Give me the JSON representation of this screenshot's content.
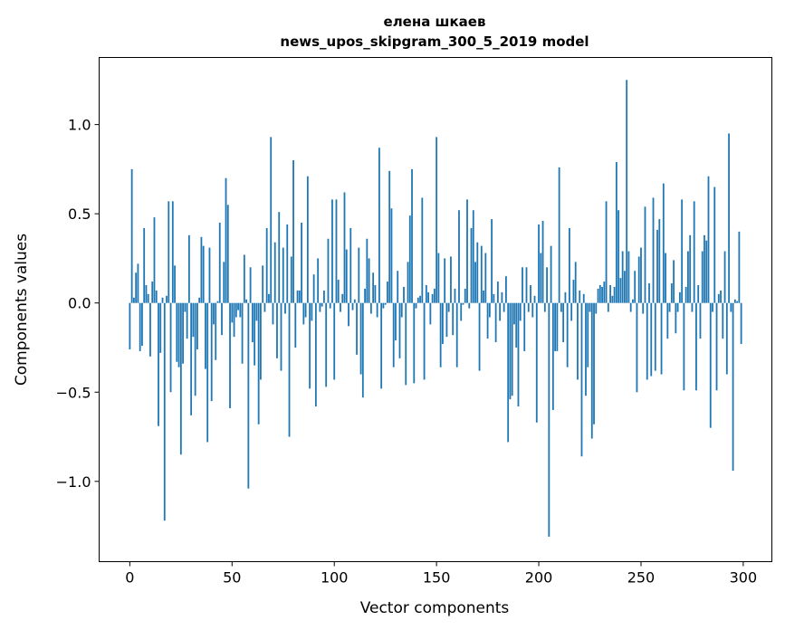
{
  "chart_data": {
    "type": "bar",
    "title": "елена шкаев",
    "subtitle": "news_upos_skipgram_300_5_2019 model",
    "xlabel": "Vector components",
    "ylabel": "Components values",
    "xlim": [
      -15,
      314
    ],
    "ylim": [
      -1.45,
      1.376
    ],
    "xticks": [
      0,
      50,
      100,
      150,
      200,
      250,
      300
    ],
    "xtick_labels": [
      "0",
      "50",
      "100",
      "150",
      "200",
      "250",
      "300"
    ],
    "yticks": [
      -1.0,
      -0.5,
      0.0,
      0.5,
      1.0
    ],
    "ytick_labels": [
      "−1.0",
      "−0.5",
      "0.0",
      "0.5",
      "1.0"
    ],
    "grid": false,
    "color": "#1f77b4",
    "values": [
      -0.26,
      0.75,
      0.03,
      0.17,
      0.22,
      -0.27,
      -0.24,
      0.42,
      0.1,
      0.05,
      -0.3,
      0.12,
      0.48,
      0.07,
      -0.69,
      -0.28,
      0.03,
      -1.22,
      0.04,
      0.57,
      -0.5,
      0.57,
      0.21,
      -0.33,
      -0.36,
      -0.85,
      -0.34,
      -0.05,
      -0.2,
      0.38,
      -0.63,
      -0.19,
      -0.52,
      -0.26,
      0.03,
      0.37,
      0.32,
      -0.37,
      -0.78,
      0.31,
      -0.55,
      -0.12,
      -0.32,
      0.01,
      0.45,
      -0.18,
      0.23,
      0.7,
      0.55,
      -0.59,
      -0.11,
      -0.19,
      -0.08,
      -0.04,
      -0.08,
      -0.34,
      0.27,
      0.02,
      -1.04,
      0.2,
      -0.22,
      -0.35,
      -0.1,
      -0.68,
      -0.43,
      0.21,
      -0.05,
      0.42,
      0.05,
      0.93,
      -0.12,
      0.34,
      -0.31,
      0.51,
      -0.38,
      0.31,
      -0.06,
      0.44,
      -0.75,
      0.26,
      0.8,
      -0.25,
      0.07,
      0.07,
      0.45,
      -0.12,
      -0.08,
      0.71,
      -0.48,
      -0.1,
      0.16,
      -0.58,
      0.25,
      -0.05,
      -0.02,
      0.07,
      -0.47,
      0.36,
      -0.03,
      0.58,
      -0.43,
      0.58,
      0.13,
      -0.05,
      0.05,
      0.62,
      0.3,
      -0.13,
      0.42,
      -0.04,
      0.02,
      -0.29,
      0.31,
      -0.4,
      -0.53,
      0.08,
      0.36,
      0.25,
      -0.06,
      0.17,
      0.1,
      -0.08,
      0.87,
      -0.48,
      -0.03,
      -0.01,
      0.12,
      0.74,
      0.53,
      -0.36,
      -0.21,
      0.18,
      -0.31,
      -0.08,
      0.09,
      -0.46,
      0.23,
      0.49,
      0.75,
      -0.45,
      -0.03,
      0.03,
      0.04,
      0.59,
      -0.43,
      0.1,
      0.06,
      -0.12,
      0.05,
      0.08,
      0.93,
      0.28,
      -0.36,
      -0.23,
      0.25,
      -0.19,
      -0.05,
      0.26,
      -0.18,
      0.08,
      -0.36,
      0.52,
      -0.1,
      -0.01,
      0.08,
      0.58,
      -0.03,
      0.42,
      0.52,
      0.23,
      0.34,
      -0.38,
      0.32,
      0.07,
      0.28,
      -0.2,
      -0.08,
      0.47,
      0.05,
      -0.22,
      0.12,
      -0.1,
      0.06,
      -0.05,
      0.15,
      -0.78,
      -0.54,
      -0.52,
      -0.12,
      -0.25,
      -0.58,
      -0.1,
      0.2,
      -0.27,
      0.2,
      -0.05,
      0.1,
      -0.08,
      0.04,
      -0.67,
      0.44,
      0.28,
      0.46,
      -0.05,
      0.2,
      -1.31,
      0.32,
      -0.6,
      -0.27,
      -0.27,
      0.76,
      -0.05,
      -0.22,
      0.06,
      -0.36,
      0.42,
      -0.1,
      0.13,
      0.23,
      -0.43,
      0.07,
      -0.86,
      0.05,
      -0.52,
      -0.36,
      -0.05,
      -0.76,
      -0.68,
      -0.06,
      0.08,
      0.1,
      0.09,
      0.12,
      0.57,
      -0.05,
      0.1,
      0.04,
      0.09,
      0.79,
      0.52,
      0.14,
      0.29,
      0.18,
      1.25,
      0.29,
      -0.05,
      0.02,
      0.18,
      -0.5,
      0.26,
      0.31,
      -0.06,
      0.54,
      -0.43,
      0.11,
      -0.41,
      0.59,
      -0.38,
      0.41,
      0.47,
      -0.4,
      0.67,
      0.28,
      -0.2,
      -0.05,
      0.11,
      0.24,
      -0.17,
      -0.05,
      0.06,
      0.58,
      -0.49,
      0.09,
      0.29,
      0.38,
      -0.05,
      0.57,
      -0.49,
      0.1,
      -0.2,
      0.29,
      0.38,
      0.35,
      0.71,
      -0.7,
      -0.05,
      0.65,
      -0.49,
      0.05,
      0.07,
      -0.2,
      0.29,
      -0.4,
      0.95,
      -0.05,
      -0.94,
      0.02,
      0.01,
      0.4,
      -0.23
    ]
  }
}
